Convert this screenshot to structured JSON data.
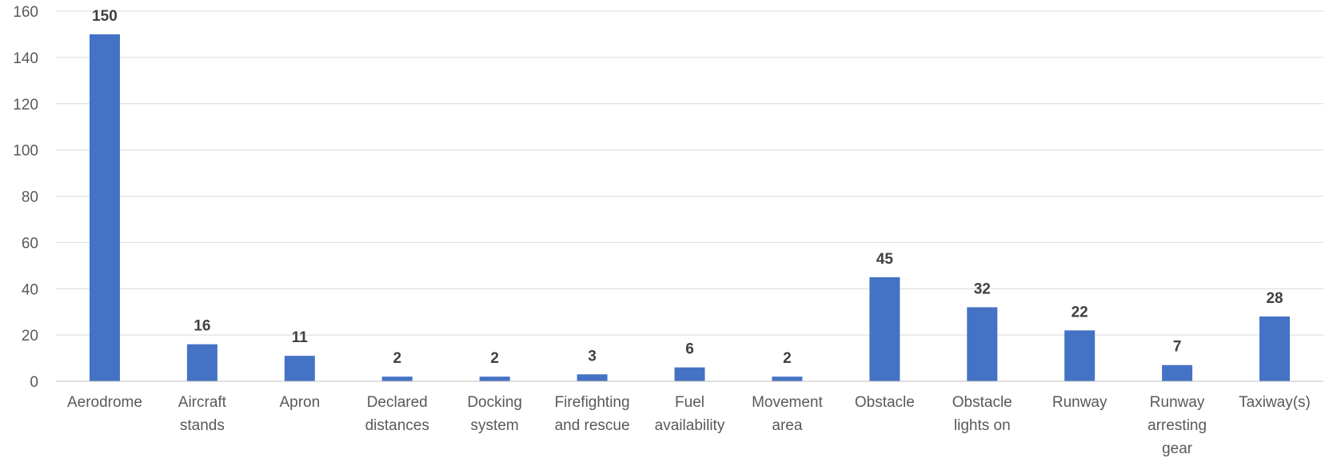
{
  "chart_data": {
    "type": "bar",
    "title": "",
    "xlabel": "",
    "ylabel": "",
    "ylim": [
      0,
      160
    ],
    "y_ticks": [
      0,
      20,
      40,
      60,
      80,
      100,
      120,
      140,
      160
    ],
    "grid": true,
    "bar_color": "#4472c4",
    "categories": [
      [
        "Aerodrome"
      ],
      [
        "Aircraft",
        "stands"
      ],
      [
        "Apron"
      ],
      [
        "Declared",
        "distances"
      ],
      [
        "Docking",
        "system"
      ],
      [
        "Firefighting",
        "and rescue"
      ],
      [
        "Fuel",
        "availability"
      ],
      [
        "Movement",
        "area"
      ],
      [
        "Obstacle"
      ],
      [
        "Obstacle",
        "lights on"
      ],
      [
        "Runway"
      ],
      [
        "Runway",
        "arresting",
        "gear"
      ],
      [
        "Taxiway(s)"
      ]
    ],
    "values": [
      150,
      16,
      11,
      2,
      2,
      3,
      6,
      2,
      45,
      32,
      22,
      7,
      28
    ]
  }
}
